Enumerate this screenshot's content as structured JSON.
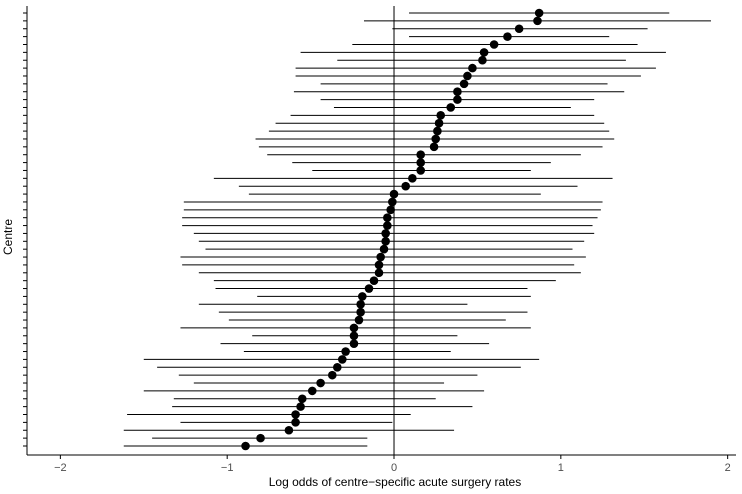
{
  "chart_data": {
    "type": "forest",
    "xlabel": "Log odds of centre−specific acute surgery rates",
    "ylabel": "Centre",
    "xlim": [
      -2.2,
      2.05
    ],
    "x_ticks": [
      -2,
      -1,
      0,
      1,
      2
    ],
    "x_tick_labels": [
      "−2",
      "−1",
      "0",
      "1",
      "2"
    ],
    "reference_line": 0,
    "grid": false,
    "points": [
      {
        "estimate": -0.89,
        "lower": -1.62,
        "upper": -0.16
      },
      {
        "estimate": -0.8,
        "lower": -1.45,
        "upper": -0.16
      },
      {
        "estimate": -0.63,
        "lower": -1.62,
        "upper": 0.36
      },
      {
        "estimate": -0.59,
        "lower": -1.28,
        "upper": -0.01
      },
      {
        "estimate": -0.59,
        "lower": -1.6,
        "upper": 0.1
      },
      {
        "estimate": -0.56,
        "lower": -1.33,
        "upper": 0.47
      },
      {
        "estimate": -0.55,
        "lower": -1.32,
        "upper": 0.25
      },
      {
        "estimate": -0.49,
        "lower": -1.5,
        "upper": 0.54
      },
      {
        "estimate": -0.44,
        "lower": -1.2,
        "upper": 0.3
      },
      {
        "estimate": -0.37,
        "lower": -1.29,
        "upper": 0.5
      },
      {
        "estimate": -0.34,
        "lower": -1.42,
        "upper": 0.76
      },
      {
        "estimate": -0.31,
        "lower": -1.5,
        "upper": 0.87
      },
      {
        "estimate": -0.29,
        "lower": -0.9,
        "upper": 0.34
      },
      {
        "estimate": -0.24,
        "lower": -1.04,
        "upper": 0.57
      },
      {
        "estimate": -0.24,
        "lower": -0.85,
        "upper": 0.38
      },
      {
        "estimate": -0.24,
        "lower": -1.28,
        "upper": 0.82
      },
      {
        "estimate": -0.21,
        "lower": -0.99,
        "upper": 0.67
      },
      {
        "estimate": -0.2,
        "lower": -1.05,
        "upper": 0.8
      },
      {
        "estimate": -0.2,
        "lower": -1.17,
        "upper": 0.44
      },
      {
        "estimate": -0.19,
        "lower": -0.82,
        "upper": 0.82
      },
      {
        "estimate": -0.15,
        "lower": -1.07,
        "upper": 0.8
      },
      {
        "estimate": -0.12,
        "lower": -1.08,
        "upper": 0.97
      },
      {
        "estimate": -0.09,
        "lower": -1.17,
        "upper": 1.12
      },
      {
        "estimate": -0.09,
        "lower": -1.27,
        "upper": 1.08
      },
      {
        "estimate": -0.08,
        "lower": -1.28,
        "upper": 1.15
      },
      {
        "estimate": -0.06,
        "lower": -1.13,
        "upper": 1.07
      },
      {
        "estimate": -0.05,
        "lower": -1.17,
        "upper": 1.14
      },
      {
        "estimate": -0.05,
        "lower": -1.2,
        "upper": 1.2
      },
      {
        "estimate": -0.04,
        "lower": -1.27,
        "upper": 1.19
      },
      {
        "estimate": -0.04,
        "lower": -1.27,
        "upper": 1.22
      },
      {
        "estimate": -0.02,
        "lower": -1.26,
        "upper": 1.24
      },
      {
        "estimate": -0.01,
        "lower": -1.26,
        "upper": 1.25
      },
      {
        "estimate": 0.0,
        "lower": -0.87,
        "upper": 0.88
      },
      {
        "estimate": 0.07,
        "lower": -0.93,
        "upper": 1.1
      },
      {
        "estimate": 0.11,
        "lower": -1.08,
        "upper": 1.31
      },
      {
        "estimate": 0.16,
        "lower": -0.49,
        "upper": 0.82
      },
      {
        "estimate": 0.16,
        "lower": -0.61,
        "upper": 0.94
      },
      {
        "estimate": 0.16,
        "lower": -0.76,
        "upper": 1.12
      },
      {
        "estimate": 0.24,
        "lower": -0.81,
        "upper": 1.25
      },
      {
        "estimate": 0.25,
        "lower": -0.83,
        "upper": 1.32
      },
      {
        "estimate": 0.26,
        "lower": -0.75,
        "upper": 1.29
      },
      {
        "estimate": 0.27,
        "lower": -0.71,
        "upper": 1.26
      },
      {
        "estimate": 0.28,
        "lower": -0.62,
        "upper": 1.2
      },
      {
        "estimate": 0.34,
        "lower": -0.36,
        "upper": 1.06
      },
      {
        "estimate": 0.38,
        "lower": -0.44,
        "upper": 1.2
      },
      {
        "estimate": 0.38,
        "lower": -0.6,
        "upper": 1.38
      },
      {
        "estimate": 0.42,
        "lower": -0.44,
        "upper": 1.28
      },
      {
        "estimate": 0.44,
        "lower": -0.59,
        "upper": 1.48
      },
      {
        "estimate": 0.47,
        "lower": -0.59,
        "upper": 1.57
      },
      {
        "estimate": 0.53,
        "lower": -0.34,
        "upper": 1.39
      },
      {
        "estimate": 0.54,
        "lower": -0.56,
        "upper": 1.63
      },
      {
        "estimate": 0.6,
        "lower": -0.25,
        "upper": 1.46
      },
      {
        "estimate": 0.68,
        "lower": 0.09,
        "upper": 1.29
      },
      {
        "estimate": 0.75,
        "lower": -0.01,
        "upper": 1.52
      },
      {
        "estimate": 0.86,
        "lower": -0.18,
        "upper": 1.9
      },
      {
        "estimate": 0.87,
        "lower": 0.09,
        "upper": 1.65
      }
    ]
  }
}
